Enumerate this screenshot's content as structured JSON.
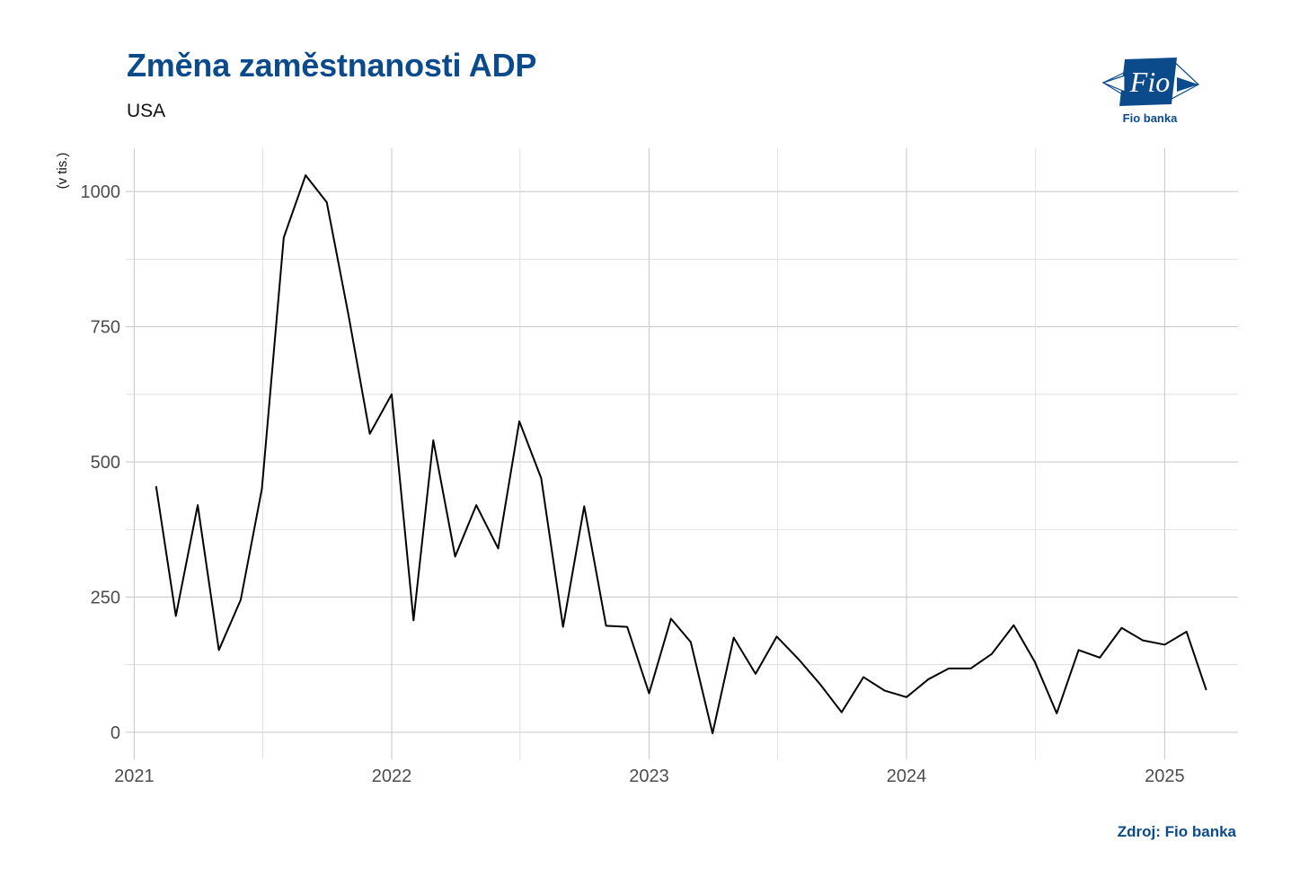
{
  "header": {
    "title": "Změna zaměstnanosti ADP",
    "subtitle": "USA"
  },
  "logo": {
    "text": "Fio",
    "caption": "Fio banka",
    "color": "#0b4a8b"
  },
  "footer": {
    "source": "Zdroj: Fio banka"
  },
  "chart_data": {
    "type": "line",
    "title": "Změna zaměstnanosti ADP",
    "subtitle": "USA",
    "xlabel": "",
    "ylabel": "(v tis.)",
    "x_ticks": [
      "2021",
      "2022",
      "2023",
      "2024",
      "2025"
    ],
    "y_ticks": [
      0,
      250,
      500,
      750,
      1000
    ],
    "ylim": [
      -50,
      1080
    ],
    "xlim": [
      "2020-12-20",
      "2025-04-15"
    ],
    "grid": true,
    "line_color": "#000000",
    "series": [
      {
        "x": [
          "2021-02",
          "2021-03",
          "2021-04",
          "2021-05",
          "2021-06",
          "2021-07",
          "2021-08",
          "2021-09",
          "2021-10",
          "2021-11",
          "2021-12",
          "2022-01",
          "2022-02",
          "2022-03",
          "2022-04",
          "2022-05",
          "2022-06",
          "2022-07",
          "2022-08",
          "2022-09",
          "2022-10",
          "2022-11",
          "2022-12",
          "2023-01",
          "2023-02",
          "2023-03",
          "2023-04",
          "2023-05",
          "2023-06",
          "2023-07",
          "2023-08",
          "2023-09",
          "2023-10",
          "2023-11",
          "2023-12",
          "2024-01",
          "2024-02",
          "2024-03",
          "2024-04",
          "2024-05",
          "2024-06",
          "2024-07",
          "2024-08",
          "2024-09",
          "2024-10",
          "2024-11",
          "2024-12",
          "2025-01",
          "2025-02",
          "2025-03"
        ],
        "values": [
          455,
          215,
          420,
          152,
          245,
          450,
          915,
          1030,
          980,
          770,
          552,
          625,
          207,
          540,
          325,
          420,
          340,
          575,
          470,
          195,
          418,
          197,
          195,
          72,
          210,
          167,
          -2,
          175,
          108,
          177,
          135,
          88,
          37,
          102,
          77,
          65,
          98,
          118,
          118,
          145,
          198,
          130,
          35,
          152,
          138,
          193,
          170,
          162,
          186,
          78
        ]
      }
    ]
  }
}
